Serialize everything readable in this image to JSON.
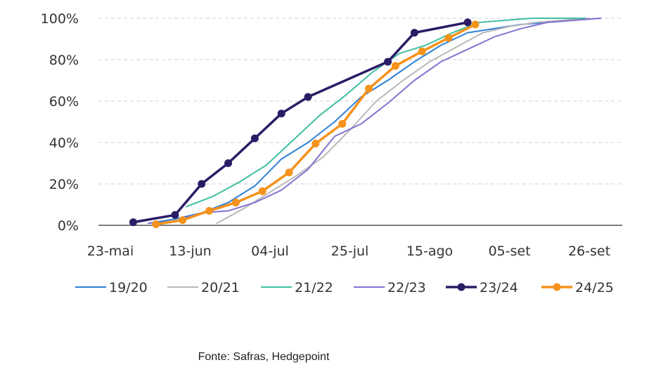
{
  "chart_data": {
    "type": "line",
    "y_ticks": [
      "0%",
      "20%",
      "40%",
      "60%",
      "80%",
      "100%"
    ],
    "x_ticks": [
      "23-mai",
      "13-jun",
      "04-jul",
      "25-jul",
      "15-ago",
      "05-set",
      "26-set"
    ],
    "x_tick_days": [
      0,
      21,
      42,
      63,
      84,
      105,
      126
    ],
    "ylim": [
      0,
      100
    ],
    "xlim": [
      "20-mai",
      "30-set"
    ],
    "grid": "horizontal dashed",
    "legend_placement": "bottom",
    "series": [
      {
        "name": "19/20",
        "color": "#2f80d6",
        "width": 2,
        "markers": false,
        "x": [
          "02-jun",
          "09-jun",
          "16-jun",
          "23-jun",
          "30-jun",
          "07-jul",
          "14-jul",
          "21-jul",
          "28-jul",
          "04-ago",
          "11-ago",
          "18-ago",
          "25-ago",
          "01-set",
          "08-set",
          "15-set",
          "22-set",
          "29-set"
        ],
        "values": [
          1,
          3,
          6,
          11,
          19,
          32,
          40,
          50,
          62,
          70,
          79,
          87,
          93,
          95,
          97,
          98,
          99,
          100
        ]
      },
      {
        "name": "20/21",
        "color": "#b8b8b8",
        "width": 2,
        "markers": false,
        "x": [
          "20-jun",
          "27-jun",
          "04-jul",
          "11-jul",
          "18-jul",
          "25-jul",
          "01-ago",
          "08-ago",
          "15-ago",
          "22-ago",
          "29-ago",
          "05-set",
          "12-set",
          "19-set",
          "26-set"
        ],
        "values": [
          1,
          8,
          16,
          24,
          33,
          46,
          60,
          70,
          79,
          86,
          93,
          96,
          98,
          99,
          100
        ]
      },
      {
        "name": "21/22",
        "color": "#3fbfa3",
        "width": 2,
        "markers": false,
        "x": [
          "12-jun",
          "19-jun",
          "26-jun",
          "03-jul",
          "10-jul",
          "17-jul",
          "24-jul",
          "31-jul",
          "07-ago",
          "14-ago",
          "21-ago",
          "28-ago",
          "04-set",
          "11-set",
          "18-set",
          "25-set"
        ],
        "values": [
          9,
          14,
          21,
          29,
          41,
          53,
          63,
          74,
          83,
          87,
          93,
          98,
          99,
          100,
          100,
          100
        ]
      },
      {
        "name": "22/23",
        "color": "#8472cf",
        "width": 2,
        "markers": false,
        "x": [
          "02-jun",
          "09-jun",
          "16-jun",
          "23-jun",
          "30-jun",
          "07-jul",
          "14-jul",
          "21-jul",
          "28-jul",
          "04-ago",
          "11-ago",
          "18-ago",
          "25-ago",
          "01-set",
          "08-set",
          "15-set",
          "22-set",
          "29-set"
        ],
        "values": [
          1,
          2,
          6,
          7,
          11,
          17,
          27,
          43,
          49,
          59,
          70,
          79,
          85,
          91,
          95,
          98,
          99,
          100
        ]
      },
      {
        "name": "23/24",
        "color": "#2b1c66",
        "width": 3.5,
        "markers": true,
        "x": [
          "29-mai",
          "09-jun",
          "16-jun",
          "23-jun",
          "30-jun",
          "07-jul",
          "14-jul",
          "04-ago",
          "11-ago",
          "25-ago"
        ],
        "values": [
          1.5,
          5,
          20,
          30,
          42,
          54,
          62,
          79,
          93,
          98
        ]
      },
      {
        "name": "24/25",
        "color": "#f5921b",
        "width": 3.5,
        "markers": true,
        "x": [
          "04-jun",
          "11-jun",
          "18-jun",
          "25-jun",
          "02-jul",
          "09-jul",
          "16-jul",
          "23-jul",
          "30-jul",
          "06-ago",
          "13-ago",
          "20-ago",
          "27-ago"
        ],
        "values": [
          0.5,
          2.5,
          7,
          11,
          16.5,
          25.5,
          39.5,
          49,
          66,
          77,
          84,
          90.5,
          97
        ]
      }
    ]
  },
  "source": "Fonte: Safras, Hedgepoint"
}
